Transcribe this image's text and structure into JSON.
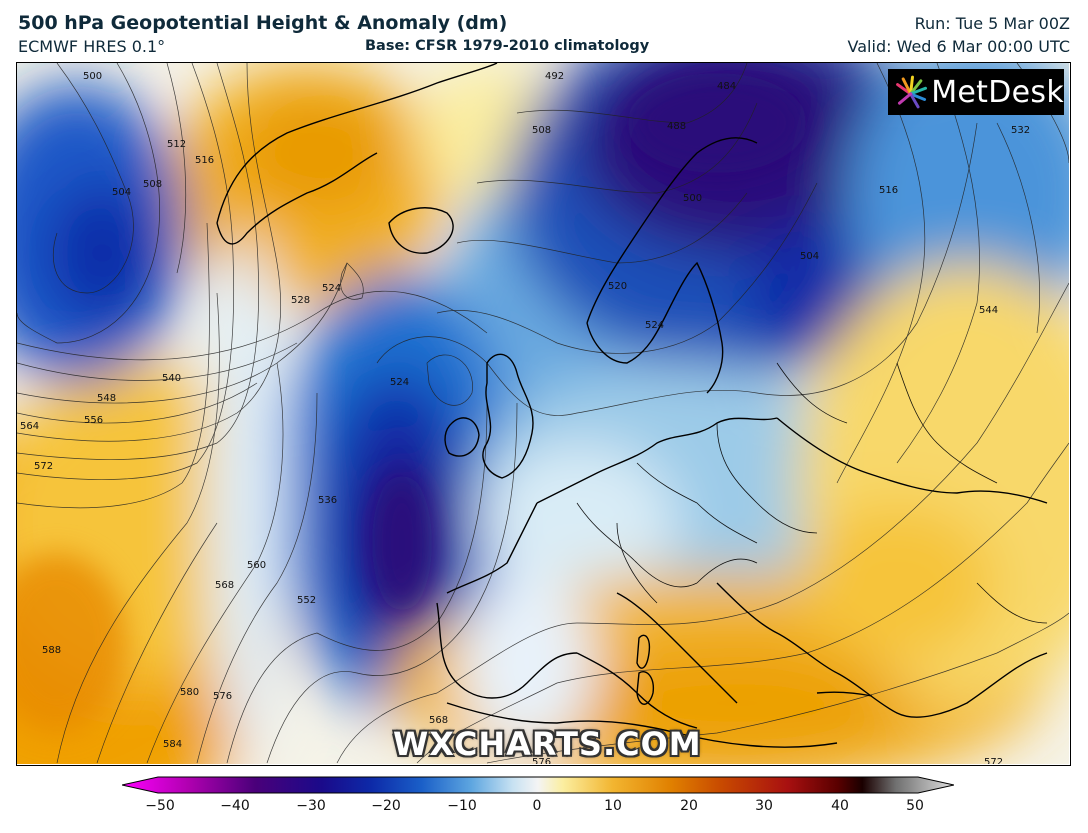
{
  "header": {
    "title": "500 hPa Geopotential Height & Anomaly (dm)",
    "model": "ECMWF HRES 0.1°",
    "base": "Base: CFSR 1979-2010 climatology",
    "run": "Run: Tue 5 Mar 00Z",
    "valid": "Valid: Wed 6 Mar 00:00 UTC"
  },
  "branding": {
    "logo_text": "MetDesk",
    "watermark": "WXCHARTS.COM"
  },
  "colorbar": {
    "ticks": [
      "−50",
      "−40",
      "−30",
      "−20",
      "−10",
      "0",
      "10",
      "20",
      "30",
      "40",
      "50"
    ],
    "range": [
      -50,
      50
    ],
    "colors": {
      "min": "#ff00ff",
      "deep_purple": "#2a0a7a",
      "dark_blue": "#0d2aa8",
      "blue": "#1f6fd0",
      "light_blue": "#9ccbe8",
      "white": "#f4f4f4",
      "light_yellow": "#fbeea0",
      "orange": "#f0a000",
      "dark_orange": "#d06000",
      "red": "#b01010",
      "dark_red": "#5a0000",
      "max": "#d8d8d8"
    }
  },
  "contour_labels": [
    "500",
    "504",
    "508",
    "512",
    "516",
    "524",
    "528",
    "540",
    "548",
    "556",
    "564",
    "572",
    "524",
    "536",
    "552",
    "560",
    "568",
    "588",
    "580",
    "576",
    "584",
    "492",
    "508",
    "500",
    "504",
    "488",
    "484",
    "516",
    "532",
    "544",
    "520",
    "524",
    "568",
    "576",
    "572"
  ]
}
